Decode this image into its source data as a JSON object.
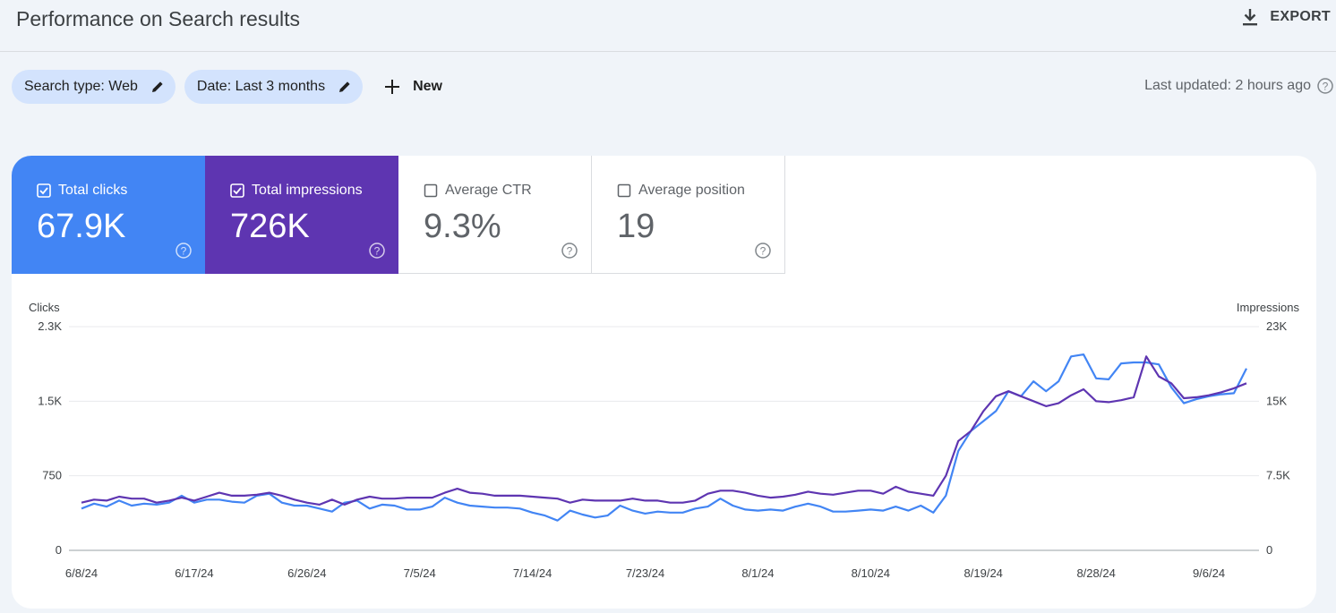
{
  "header": {
    "title": "Performance on Search results",
    "export_label": "EXPORT"
  },
  "filters": {
    "chips": [
      {
        "label": "Search type: Web"
      },
      {
        "label": "Date: Last 3 months"
      }
    ],
    "new_label": "New",
    "last_updated": "Last updated: 2 hours ago"
  },
  "metrics": [
    {
      "name": "Total clicks",
      "value": "67.9K",
      "checked": true,
      "color": "#4285f4"
    },
    {
      "name": "Total impressions",
      "value": "726K",
      "checked": true,
      "color": "#5e35b1"
    },
    {
      "name": "Average CTR",
      "value": "9.3%",
      "checked": false
    },
    {
      "name": "Average position",
      "value": "19",
      "checked": false
    }
  ],
  "chart_data": {
    "type": "line",
    "left_axis_label": "Clicks",
    "right_axis_label": "Impressions",
    "left_ticks": [
      "2.3K",
      "1.5K",
      "750",
      "0"
    ],
    "right_ticks": [
      "23K",
      "15K",
      "7.5K",
      "0"
    ],
    "left_ylim": [
      0,
      2250
    ],
    "right_ylim": [
      0,
      22500
    ],
    "x_tick_labels": [
      "6/8/24",
      "6/17/24",
      "6/26/24",
      "7/5/24",
      "7/14/24",
      "7/23/24",
      "8/1/24",
      "8/10/24",
      "8/19/24",
      "8/28/24",
      "9/6/24"
    ],
    "series": [
      {
        "name": "Total clicks",
        "axis": "left",
        "color": "#4285f4",
        "values": [
          420,
          470,
          440,
          500,
          450,
          470,
          460,
          480,
          550,
          480,
          510,
          510,
          490,
          480,
          550,
          570,
          480,
          450,
          450,
          420,
          390,
          480,
          500,
          420,
          460,
          450,
          410,
          410,
          440,
          530,
          480,
          450,
          440,
          430,
          430,
          420,
          380,
          350,
          300,
          400,
          360,
          330,
          350,
          450,
          400,
          370,
          390,
          380,
          380,
          420,
          440,
          520,
          450,
          410,
          400,
          410,
          400,
          440,
          470,
          440,
          390,
          390,
          400,
          410,
          400,
          440,
          400,
          450,
          380,
          550,
          1000,
          1200,
          1300,
          1400,
          1600,
          1550,
          1700,
          1600,
          1700,
          1950,
          1970,
          1730,
          1720,
          1880,
          1890,
          1890,
          1870,
          1640,
          1480,
          1520,
          1550,
          1570,
          1580,
          1830
        ]
      },
      {
        "name": "Total impressions",
        "axis": "right",
        "color": "#5e35b1",
        "values": [
          4800,
          5100,
          5000,
          5400,
          5200,
          5200,
          4800,
          5000,
          5300,
          5000,
          5400,
          5800,
          5500,
          5500,
          5600,
          5800,
          5500,
          5100,
          4800,
          4600,
          5100,
          4600,
          5100,
          5400,
          5200,
          5200,
          5300,
          5300,
          5300,
          5800,
          6200,
          5800,
          5700,
          5500,
          5500,
          5500,
          5400,
          5300,
          5200,
          4800,
          5100,
          5000,
          5000,
          5000,
          5200,
          5000,
          5000,
          4800,
          4800,
          5000,
          5700,
          6000,
          6000,
          5800,
          5500,
          5300,
          5400,
          5600,
          5900,
          5700,
          5600,
          5800,
          6000,
          6000,
          5700,
          6400,
          5900,
          5700,
          5500,
          7500,
          11000,
          12000,
          14000,
          15500,
          16000,
          15500,
          15000,
          14500,
          14800,
          15600,
          16200,
          15000,
          14900,
          15100,
          15400,
          19500,
          17500,
          16800,
          15300,
          15400,
          15600,
          15900,
          16300,
          16800
        ]
      }
    ]
  }
}
